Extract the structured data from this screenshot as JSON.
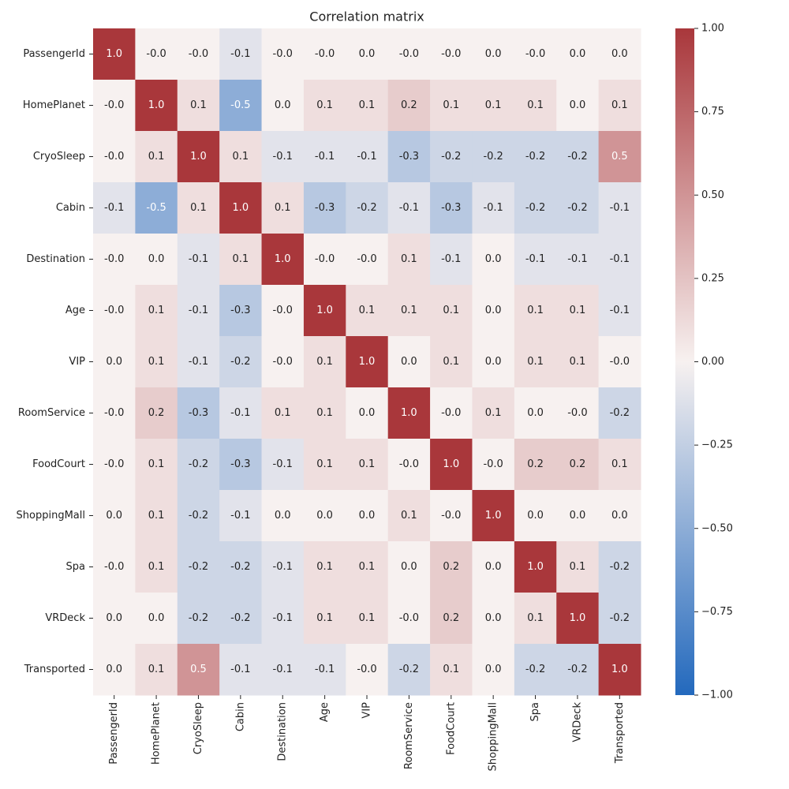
{
  "chart_data": {
    "type": "heatmap",
    "title": "Correlation matrix",
    "x_categories": [
      "PassengerId",
      "HomePlanet",
      "CryoSleep",
      "Cabin",
      "Destination",
      "Age",
      "VIP",
      "RoomService",
      "FoodCourt",
      "ShoppingMall",
      "Spa",
      "VRDeck",
      "Transported"
    ],
    "y_categories": [
      "PassengerId",
      "HomePlanet",
      "CryoSleep",
      "Cabin",
      "Destination",
      "Age",
      "VIP",
      "RoomService",
      "FoodCourt",
      "ShoppingMall",
      "Spa",
      "VRDeck",
      "Transported"
    ],
    "values": [
      [
        1.0,
        0,
        0,
        -0.1,
        0,
        0,
        0,
        0,
        0,
        0,
        0,
        0,
        0
      ],
      [
        0,
        1.0,
        0.1,
        -0.5,
        0,
        0.1,
        0.1,
        0.2,
        0.1,
        0.1,
        0.1,
        0,
        0.1
      ],
      [
        0,
        0.1,
        1.0,
        0.1,
        -0.1,
        -0.1,
        -0.1,
        -0.3,
        -0.2,
        -0.2,
        -0.2,
        -0.2,
        0.5
      ],
      [
        -0.1,
        -0.5,
        0.1,
        1.0,
        0.1,
        -0.3,
        -0.2,
        -0.1,
        -0.3,
        -0.1,
        -0.2,
        -0.2,
        -0.1
      ],
      [
        0,
        0,
        -0.1,
        0.1,
        1.0,
        0,
        0,
        0.1,
        -0.1,
        0,
        -0.1,
        -0.1,
        -0.1
      ],
      [
        0,
        0.1,
        -0.1,
        -0.3,
        0,
        1.0,
        0.1,
        0.1,
        0.1,
        0,
        0.1,
        0.1,
        -0.1
      ],
      [
        0,
        0.1,
        -0.1,
        -0.2,
        0,
        0.1,
        1.0,
        0,
        0.1,
        0,
        0.1,
        0.1,
        0
      ],
      [
        0,
        0.2,
        -0.3,
        -0.1,
        0.1,
        0.1,
        0,
        1.0,
        0,
        0.1,
        0,
        0,
        -0.2
      ],
      [
        0,
        0.1,
        -0.2,
        -0.3,
        -0.1,
        0.1,
        0.1,
        0,
        1.0,
        0,
        0.2,
        0.2,
        0.1
      ],
      [
        0,
        0.1,
        -0.2,
        -0.1,
        0,
        0,
        0,
        0.1,
        0,
        1.0,
        0,
        0,
        0
      ],
      [
        0,
        0.1,
        -0.2,
        -0.2,
        -0.1,
        0.1,
        0.1,
        0,
        0.2,
        0,
        1.0,
        0.1,
        -0.2
      ],
      [
        0,
        0,
        -0.2,
        -0.2,
        -0.1,
        0.1,
        0.1,
        0,
        0.2,
        0,
        0.1,
        1.0,
        -0.2
      ],
      [
        0,
        0.1,
        0.5,
        -0.1,
        -0.1,
        -0.1,
        0,
        -0.2,
        0.1,
        0,
        -0.2,
        -0.2,
        1.0
      ]
    ],
    "value_labels": [
      [
        "1.0",
        "-0.0",
        "-0.0",
        "-0.1",
        "-0.0",
        "-0.0",
        "0.0",
        "-0.0",
        "-0.0",
        "0.0",
        "-0.0",
        "0.0",
        "0.0"
      ],
      [
        "-0.0",
        "1.0",
        "0.1",
        "-0.5",
        "0.0",
        "0.1",
        "0.1",
        "0.2",
        "0.1",
        "0.1",
        "0.1",
        "0.0",
        "0.1"
      ],
      [
        "-0.0",
        "0.1",
        "1.0",
        "0.1",
        "-0.1",
        "-0.1",
        "-0.1",
        "-0.3",
        "-0.2",
        "-0.2",
        "-0.2",
        "-0.2",
        "0.5"
      ],
      [
        "-0.1",
        "-0.5",
        "0.1",
        "1.0",
        "0.1",
        "-0.3",
        "-0.2",
        "-0.1",
        "-0.3",
        "-0.1",
        "-0.2",
        "-0.2",
        "-0.1"
      ],
      [
        "-0.0",
        "0.0",
        "-0.1",
        "0.1",
        "1.0",
        "-0.0",
        "-0.0",
        "0.1",
        "-0.1",
        "0.0",
        "-0.1",
        "-0.1",
        "-0.1"
      ],
      [
        "-0.0",
        "0.1",
        "-0.1",
        "-0.3",
        "-0.0",
        "1.0",
        "0.1",
        "0.1",
        "0.1",
        "0.0",
        "0.1",
        "0.1",
        "-0.1"
      ],
      [
        "0.0",
        "0.1",
        "-0.1",
        "-0.2",
        "-0.0",
        "0.1",
        "1.0",
        "0.0",
        "0.1",
        "0.0",
        "0.1",
        "0.1",
        "-0.0"
      ],
      [
        "-0.0",
        "0.2",
        "-0.3",
        "-0.1",
        "0.1",
        "0.1",
        "0.0",
        "1.0",
        "-0.0",
        "0.1",
        "0.0",
        "-0.0",
        "-0.2"
      ],
      [
        "-0.0",
        "0.1",
        "-0.2",
        "-0.3",
        "-0.1",
        "0.1",
        "0.1",
        "-0.0",
        "1.0",
        "-0.0",
        "0.2",
        "0.2",
        "0.1"
      ],
      [
        "0.0",
        "0.1",
        "-0.2",
        "-0.1",
        "0.0",
        "0.0",
        "0.0",
        "0.1",
        "-0.0",
        "1.0",
        "0.0",
        "0.0",
        "0.0"
      ],
      [
        "-0.0",
        "0.1",
        "-0.2",
        "-0.2",
        "-0.1",
        "0.1",
        "0.1",
        "0.0",
        "0.2",
        "0.0",
        "1.0",
        "0.1",
        "-0.2"
      ],
      [
        "0.0",
        "0.0",
        "-0.2",
        "-0.2",
        "-0.1",
        "0.1",
        "0.1",
        "-0.0",
        "0.2",
        "0.0",
        "0.1",
        "1.0",
        "-0.2"
      ],
      [
        "0.0",
        "0.1",
        "0.5",
        "-0.1",
        "-0.1",
        "-0.1",
        "-0.0",
        "-0.2",
        "0.1",
        "0.0",
        "-0.2",
        "-0.2",
        "1.0"
      ]
    ],
    "colormap": [
      "#2369bd",
      "#f7f1f0",
      "#a9373b"
    ],
    "zlim": [
      -1,
      1
    ],
    "zticks": [
      {
        "value": 1,
        "label": "1.00"
      },
      {
        "value": 0.75,
        "label": "0.75"
      },
      {
        "value": 0.5,
        "label": "0.50"
      },
      {
        "value": 0.25,
        "label": "0.25"
      },
      {
        "value": 0,
        "label": "0.00"
      },
      {
        "value": -0.25,
        "label": "−0.25"
      },
      {
        "value": -0.5,
        "label": "−0.50"
      },
      {
        "value": -0.75,
        "label": "−0.75"
      },
      {
        "value": -1,
        "label": "−1.00"
      }
    ]
  }
}
